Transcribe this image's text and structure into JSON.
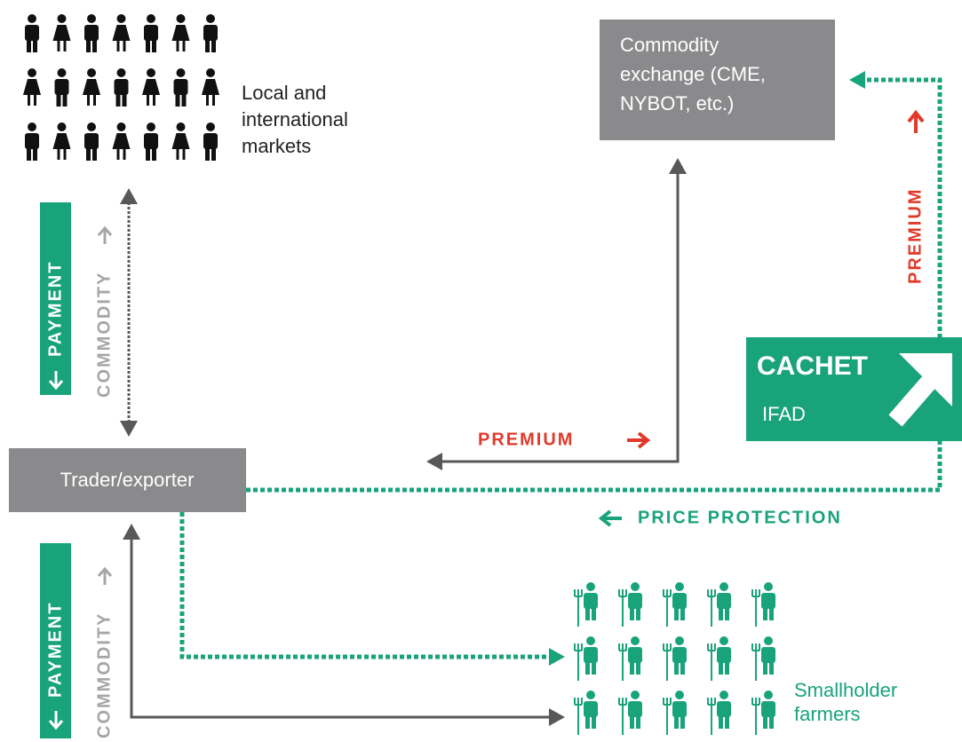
{
  "nodes": {
    "markets": {
      "lines": [
        "Local and",
        "international",
        "markets"
      ]
    },
    "exchange": {
      "lines": [
        "Commodity",
        "exchange (CME,",
        "NYBOT, etc.)"
      ]
    },
    "trader": {
      "label": "Trader/exporter"
    },
    "farmers": {
      "lines": [
        "Smallholder",
        "farmers"
      ]
    },
    "cachet": {
      "title": "CACHET",
      "subtitle": "IFAD"
    }
  },
  "flows": {
    "upper_payment": "PAYMENT",
    "upper_commodity": "COMMODITY",
    "lower_payment": "PAYMENT",
    "lower_commodity": "COMMODITY",
    "premium_to_trader": "PREMIUM",
    "premium_to_exchange": "PREMIUM",
    "price_protection": "PRICE PROTECTION"
  }
}
